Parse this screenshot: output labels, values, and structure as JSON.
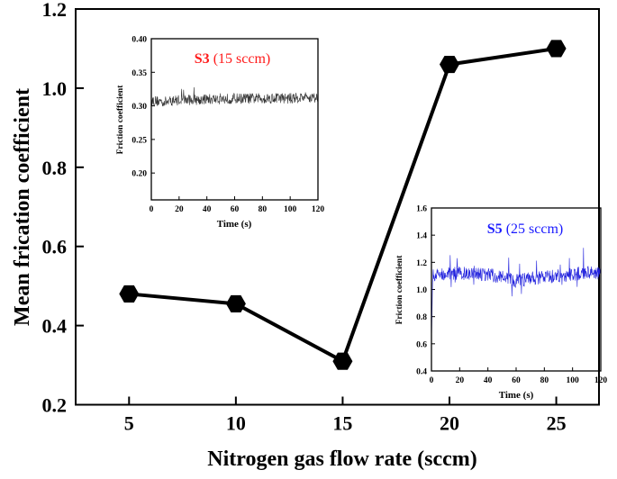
{
  "chart_data": [
    {
      "type": "line",
      "xlabel": "Nitrogen gas flow rate (sccm)",
      "ylabel": "Mean frication coefficient",
      "x": [
        5,
        10,
        15,
        20,
        25
      ],
      "values": [
        0.48,
        0.455,
        0.31,
        1.06,
        1.1
      ],
      "xticks": [
        5,
        10,
        15,
        20,
        25
      ],
      "yticks": [
        "0.2",
        "0.4",
        "0.6",
        "0.8",
        "1.0",
        "1.2"
      ],
      "xlim": [
        2.5,
        27
      ],
      "ylim": [
        0.2,
        1.2
      ],
      "marker": "hexagon",
      "color": "#000000",
      "grid": false
    },
    {
      "type": "line",
      "title_bold": "S3",
      "title_rest": "(15 sccm)",
      "title_color": "#ff1a1a",
      "xlabel": "Time (s)",
      "ylabel": "Friction coefficient",
      "xticks": [
        "0",
        "20",
        "40",
        "60",
        "80",
        "100",
        "120"
      ],
      "yticks": [
        "0.20",
        "0.25",
        "0.30",
        "0.35",
        "0.40"
      ],
      "xlim": [
        0,
        120
      ],
      "ylim": [
        0.16,
        0.4
      ],
      "x": [
        0,
        10,
        20,
        30,
        40,
        50,
        60,
        70,
        80,
        90,
        100,
        110,
        120
      ],
      "values": [
        0.308,
        0.306,
        0.309,
        0.309,
        0.31,
        0.31,
        0.311,
        0.311,
        0.311,
        0.312,
        0.311,
        0.313,
        0.312
      ],
      "line_color": "#333333",
      "grid": false
    },
    {
      "type": "line",
      "title_bold": "S5",
      "title_rest": "(25 sccm)",
      "title_color": "#1a1aff",
      "xlabel": "Time (s)",
      "ylabel": "Friction coefficient",
      "xticks": [
        "0",
        "20",
        "40",
        "60",
        "80",
        "100",
        "120"
      ],
      "yticks": [
        "0.4",
        "0.6",
        "0.8",
        "1.0",
        "1.2",
        "1.4",
        "1.6"
      ],
      "xlim": [
        0,
        120
      ],
      "ylim": [
        0.4,
        1.6
      ],
      "x": [
        0,
        10,
        20,
        30,
        40,
        50,
        60,
        70,
        80,
        90,
        100,
        110,
        120
      ],
      "values": [
        1.1,
        1.12,
        1.12,
        1.11,
        1.11,
        1.09,
        1.06,
        1.08,
        1.09,
        1.1,
        1.11,
        1.13,
        1.12
      ],
      "line_color": "#2222dd",
      "grid": false
    }
  ]
}
